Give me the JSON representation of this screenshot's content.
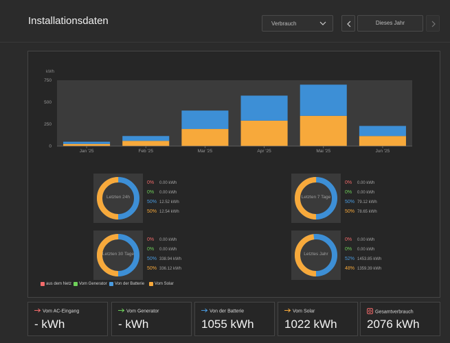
{
  "header": {
    "title": "Installationsdaten",
    "select_value": "Verbrauch",
    "period_label": "Dieses Jahr"
  },
  "chart_data": {
    "type": "bar",
    "stacked": true,
    "ylabel": "kWh",
    "ylim": [
      0,
      750
    ],
    "yticks": [
      0,
      250,
      500,
      750
    ],
    "categories": [
      "Jan '25",
      "Feb '25",
      "Mar '25",
      "Apr '25",
      "Mai '25",
      "Jun '25"
    ],
    "series": [
      {
        "name": "Vom Solar",
        "color": "#f7a93b",
        "values": [
          25,
          60,
          195,
          290,
          345,
          115
        ]
      },
      {
        "name": "Von der Batterie",
        "color": "#3d8fd6",
        "values": [
          25,
          55,
          210,
          285,
          355,
          115
        ]
      }
    ]
  },
  "donuts": [
    {
      "label": "Letzten 24h",
      "solar_fraction": 0.5,
      "stats": [
        {
          "pct": "0%",
          "val": "0.00 kWh",
          "color": "#f36b6b"
        },
        {
          "pct": "0%",
          "val": "0.00 kWh",
          "color": "#6fd15a"
        },
        {
          "pct": "50%",
          "val": "12.52 kWh",
          "color": "#4a9be0"
        },
        {
          "pct": "50%",
          "val": "12.54 kWh",
          "color": "#f7a93b"
        }
      ]
    },
    {
      "label": "Letzten 7 Tage",
      "solar_fraction": 0.5,
      "stats": [
        {
          "pct": "0%",
          "val": "0.00 kWh",
          "color": "#f36b6b"
        },
        {
          "pct": "0%",
          "val": "0.00 kWh",
          "color": "#6fd15a"
        },
        {
          "pct": "50%",
          "val": "79.12 kWh",
          "color": "#4a9be0"
        },
        {
          "pct": "50%",
          "val": "78.65 kWh",
          "color": "#f7a93b"
        }
      ]
    },
    {
      "label": "Letzten 30 Tage",
      "solar_fraction": 0.5,
      "stats": [
        {
          "pct": "0%",
          "val": "0.00 kWh",
          "color": "#f36b6b"
        },
        {
          "pct": "0%",
          "val": "0.00 kWh",
          "color": "#6fd15a"
        },
        {
          "pct": "50%",
          "val": "338.94 kWh",
          "color": "#4a9be0"
        },
        {
          "pct": "50%",
          "val": "336.12 kWh",
          "color": "#f7a93b"
        }
      ]
    },
    {
      "label": "Letztes Jahr",
      "solar_fraction": 0.48,
      "stats": [
        {
          "pct": "0%",
          "val": "0.00 kWh",
          "color": "#f36b6b"
        },
        {
          "pct": "0%",
          "val": "0.00 kWh",
          "color": "#6fd15a"
        },
        {
          "pct": "52%",
          "val": "1453.85 kWh",
          "color": "#4a9be0"
        },
        {
          "pct": "48%",
          "val": "1359.39 kWh",
          "color": "#f7a93b"
        }
      ]
    }
  ],
  "legend": [
    {
      "label": "aus dem Netz",
      "color": "#f36b6b"
    },
    {
      "label": "Vom Generator",
      "color": "#6fd15a"
    },
    {
      "label": "Von der Batterie",
      "color": "#4a9be0"
    },
    {
      "label": "Vom Solar",
      "color": "#f7a93b"
    }
  ],
  "totals": [
    {
      "label": "Vom AC-Eingang",
      "value": "- kWh",
      "icon": "arrow-right-icon",
      "color": "#f36b6b"
    },
    {
      "label": "Vom Generator",
      "value": "- kWh",
      "icon": "arrow-right-icon",
      "color": "#6fd15a"
    },
    {
      "label": "Von der Batterie",
      "value": "1055 kWh",
      "icon": "arrow-right-icon",
      "color": "#4a9be0"
    },
    {
      "label": "Vom Solar",
      "value": "1022 kWh",
      "icon": "arrow-right-icon",
      "color": "#f7a93b"
    },
    {
      "label": "Gesamtverbrauch",
      "value": "2076 kWh",
      "icon": "consumption-icon",
      "color": "#f36b6b"
    }
  ]
}
